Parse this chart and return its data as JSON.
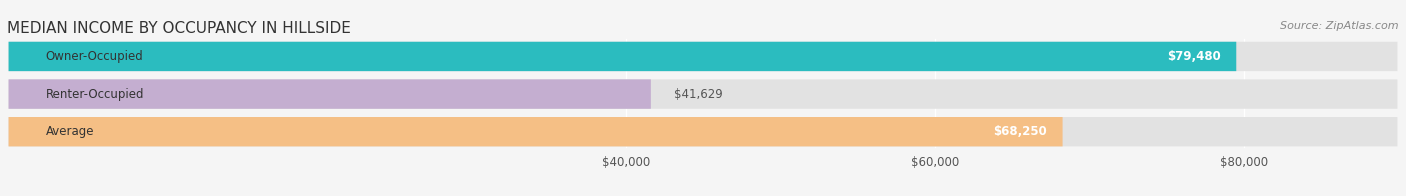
{
  "title": "MEDIAN INCOME BY OCCUPANCY IN HILLSIDE",
  "source": "Source: ZipAtlas.com",
  "categories": [
    "Owner-Occupied",
    "Renter-Occupied",
    "Average"
  ],
  "values": [
    79480,
    41629,
    68250
  ],
  "value_labels": [
    "$79,480",
    "$41,629",
    "$68,250"
  ],
  "bar_colors": [
    "#2bbcbf",
    "#c4aed0",
    "#f5bf85"
  ],
  "bg_color": "#f0f0f0",
  "bar_bg_color": "#e8e8e8",
  "xmin": 0,
  "xmax": 90000,
  "xticks": [
    40000,
    60000,
    80000
  ],
  "xtick_labels": [
    "$40,000",
    "$60,000",
    "$80,000"
  ],
  "title_fontsize": 11,
  "label_fontsize": 8.5,
  "source_fontsize": 8
}
